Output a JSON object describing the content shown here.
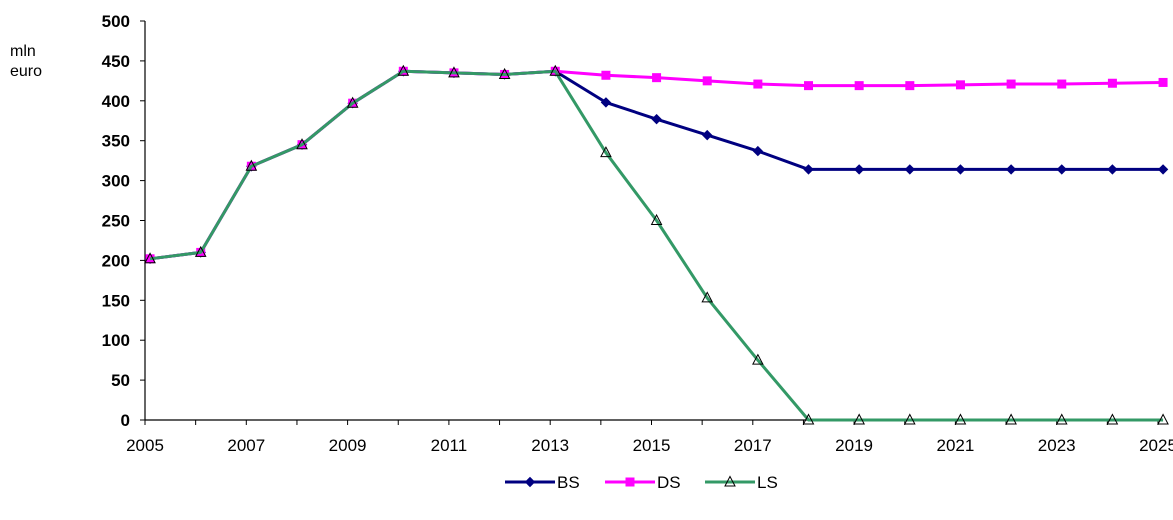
{
  "chart_data": {
    "type": "line",
    "ylabel_lines": [
      "mln",
      "euro"
    ],
    "ylim": [
      0,
      500
    ],
    "yticks": [
      0,
      50,
      100,
      150,
      200,
      250,
      300,
      350,
      400,
      450,
      500
    ],
    "xlim": [
      2005,
      2025
    ],
    "xticks": [
      "2005",
      "2007",
      "2009",
      "2011",
      "2013",
      "2015",
      "2017",
      "2019",
      "2021",
      "2023",
      "2025"
    ],
    "grid": false,
    "legend": "bottom",
    "x": [
      2005.1,
      2006.1,
      2007.1,
      2008.1,
      2009.1,
      2010.1,
      2011.1,
      2012.1,
      2013.1,
      2014.1,
      2015.1,
      2016.1,
      2017.1,
      2018.1,
      2019.1,
      2020.1,
      2021.1,
      2022.1,
      2023.1,
      2024.1,
      2025.1
    ],
    "series": [
      {
        "name": "BS",
        "color": "#000080",
        "marker": "diamond",
        "values": [
          202,
          210,
          318,
          345,
          397,
          437,
          435,
          433,
          437,
          398,
          377,
          357,
          337,
          314,
          314,
          314,
          314,
          314,
          314,
          314,
          314
        ]
      },
      {
        "name": "DS",
        "color": "#ff00ff",
        "marker": "square",
        "values": [
          202,
          210,
          318,
          345,
          397,
          437,
          435,
          433,
          437,
          432,
          429,
          425,
          421,
          419,
          419,
          419,
          420,
          421,
          421,
          422,
          423
        ]
      },
      {
        "name": "LS",
        "color": "#339966",
        "marker": "triangle",
        "values": [
          202,
          210,
          318,
          345,
          397,
          437,
          435,
          433,
          437,
          335,
          250,
          153,
          75,
          0,
          0,
          0,
          0,
          0,
          0,
          0,
          0
        ]
      }
    ]
  }
}
